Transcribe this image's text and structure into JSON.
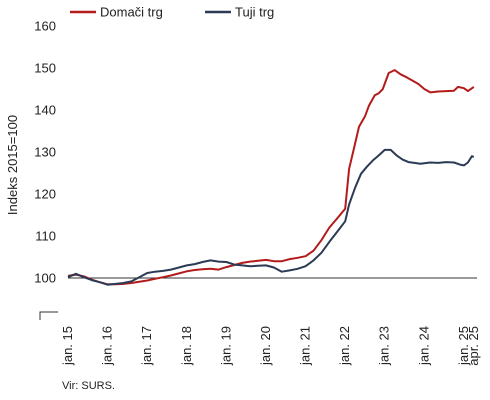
{
  "chart_data": {
    "type": "line",
    "ylabel": "Indeks 2015=100",
    "ylim": [
      90,
      160
    ],
    "yticks": [
      100,
      110,
      120,
      130,
      140,
      150,
      160
    ],
    "xlim": [
      2015.0,
      2025.33
    ],
    "xticks": [
      {
        "x": 2015.0,
        "label": "jan. 15"
      },
      {
        "x": 2016.0,
        "label": "jan. 16"
      },
      {
        "x": 2017.0,
        "label": "jan. 17"
      },
      {
        "x": 2018.0,
        "label": "jan. 18"
      },
      {
        "x": 2019.0,
        "label": "jan. 19"
      },
      {
        "x": 2020.0,
        "label": "jan. 20"
      },
      {
        "x": 2021.0,
        "label": "jan. 21"
      },
      {
        "x": 2022.0,
        "label": "jan. 22"
      },
      {
        "x": 2023.0,
        "label": "jan. 23"
      },
      {
        "x": 2024.0,
        "label": "jan. 24"
      },
      {
        "x": 2025.0,
        "label": "jan. 25"
      },
      {
        "x": 2025.25,
        "label": "apr. 25"
      }
    ],
    "reference_line": 100,
    "legend_position": "top-left",
    "series": [
      {
        "name": "Domači trg",
        "color": "#b31b1b",
        "points": [
          [
            2015.0,
            100.5
          ],
          [
            2015.2,
            100.8
          ],
          [
            2015.4,
            100.4
          ],
          [
            2015.6,
            99.6
          ],
          [
            2015.8,
            99.0
          ],
          [
            2016.0,
            98.5
          ],
          [
            2016.2,
            98.5
          ],
          [
            2016.4,
            98.6
          ],
          [
            2016.6,
            98.8
          ],
          [
            2016.8,
            99.1
          ],
          [
            2017.0,
            99.4
          ],
          [
            2017.2,
            99.8
          ],
          [
            2017.4,
            100.2
          ],
          [
            2017.6,
            100.6
          ],
          [
            2017.8,
            101.1
          ],
          [
            2018.0,
            101.6
          ],
          [
            2018.2,
            101.9
          ],
          [
            2018.4,
            102.1
          ],
          [
            2018.6,
            102.2
          ],
          [
            2018.8,
            102.0
          ],
          [
            2019.0,
            102.6
          ],
          [
            2019.2,
            103.1
          ],
          [
            2019.4,
            103.6
          ],
          [
            2019.6,
            103.9
          ],
          [
            2019.8,
            104.1
          ],
          [
            2020.0,
            104.3
          ],
          [
            2020.2,
            104.0
          ],
          [
            2020.4,
            104.0
          ],
          [
            2020.6,
            104.5
          ],
          [
            2020.8,
            104.8
          ],
          [
            2021.0,
            105.2
          ],
          [
            2021.2,
            106.5
          ],
          [
            2021.4,
            109.0
          ],
          [
            2021.6,
            112.0
          ],
          [
            2021.8,
            114.2
          ],
          [
            2022.0,
            116.5
          ],
          [
            2022.1,
            126.0
          ],
          [
            2022.2,
            130.0
          ],
          [
            2022.35,
            136.0
          ],
          [
            2022.5,
            138.5
          ],
          [
            2022.6,
            141.0
          ],
          [
            2022.75,
            143.5
          ],
          [
            2022.85,
            144.0
          ],
          [
            2022.95,
            145.0
          ],
          [
            2023.1,
            148.8
          ],
          [
            2023.25,
            149.5
          ],
          [
            2023.4,
            148.5
          ],
          [
            2023.55,
            147.8
          ],
          [
            2023.7,
            147.0
          ],
          [
            2023.85,
            146.2
          ],
          [
            2024.0,
            145.0
          ],
          [
            2024.15,
            144.2
          ],
          [
            2024.35,
            144.4
          ],
          [
            2024.55,
            144.5
          ],
          [
            2024.75,
            144.6
          ],
          [
            2024.85,
            145.5
          ],
          [
            2025.0,
            145.2
          ],
          [
            2025.1,
            144.5
          ],
          [
            2025.25,
            145.5
          ]
        ]
      },
      {
        "name": "Tuji trg",
        "color": "#2b3a55",
        "points": [
          [
            2015.0,
            100.2
          ],
          [
            2015.2,
            101.0
          ],
          [
            2015.4,
            100.2
          ],
          [
            2015.6,
            99.5
          ],
          [
            2015.8,
            99.0
          ],
          [
            2016.0,
            98.4
          ],
          [
            2016.2,
            98.6
          ],
          [
            2016.4,
            98.8
          ],
          [
            2016.6,
            99.2
          ],
          [
            2016.8,
            100.2
          ],
          [
            2017.0,
            101.2
          ],
          [
            2017.2,
            101.5
          ],
          [
            2017.4,
            101.7
          ],
          [
            2017.6,
            102.0
          ],
          [
            2017.8,
            102.5
          ],
          [
            2018.0,
            103.0
          ],
          [
            2018.2,
            103.3
          ],
          [
            2018.4,
            103.8
          ],
          [
            2018.6,
            104.2
          ],
          [
            2018.8,
            103.9
          ],
          [
            2019.0,
            103.8
          ],
          [
            2019.2,
            103.2
          ],
          [
            2019.4,
            103.0
          ],
          [
            2019.6,
            102.8
          ],
          [
            2019.8,
            102.9
          ],
          [
            2020.0,
            103.0
          ],
          [
            2020.2,
            102.5
          ],
          [
            2020.4,
            101.5
          ],
          [
            2020.6,
            101.8
          ],
          [
            2020.8,
            102.2
          ],
          [
            2021.0,
            102.8
          ],
          [
            2021.2,
            104.2
          ],
          [
            2021.4,
            106.0
          ],
          [
            2021.6,
            108.6
          ],
          [
            2021.8,
            111.0
          ],
          [
            2022.0,
            113.5
          ],
          [
            2022.1,
            117.5
          ],
          [
            2022.25,
            121.5
          ],
          [
            2022.4,
            124.8
          ],
          [
            2022.55,
            126.5
          ],
          [
            2022.7,
            128.0
          ],
          [
            2022.85,
            129.2
          ],
          [
            2023.0,
            130.5
          ],
          [
            2023.15,
            130.5
          ],
          [
            2023.3,
            129.2
          ],
          [
            2023.45,
            128.2
          ],
          [
            2023.6,
            127.6
          ],
          [
            2023.75,
            127.4
          ],
          [
            2023.9,
            127.2
          ],
          [
            2024.0,
            127.3
          ],
          [
            2024.15,
            127.5
          ],
          [
            2024.35,
            127.4
          ],
          [
            2024.55,
            127.6
          ],
          [
            2024.75,
            127.5
          ],
          [
            2024.9,
            127.0
          ],
          [
            2025.0,
            126.8
          ],
          [
            2025.1,
            127.5
          ],
          [
            2025.2,
            129.0
          ],
          [
            2025.25,
            128.8
          ]
        ]
      }
    ],
    "source": "Vir: SURS."
  }
}
